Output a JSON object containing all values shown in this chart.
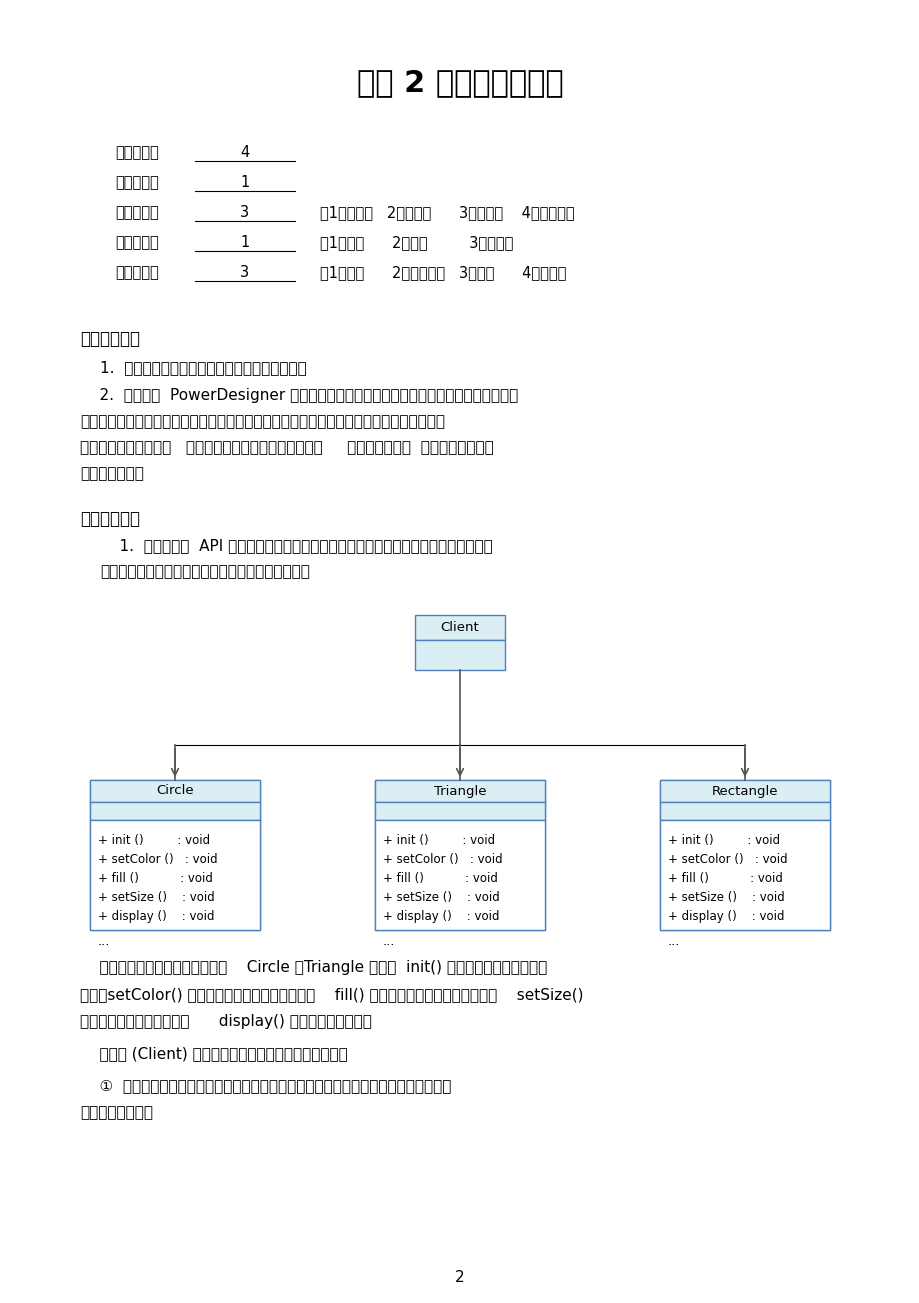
{
  "title": "实验 2 设计模式实验一",
  "bg_color": "#ffffff",
  "page_number": "2",
  "info_rows": [
    {
      "label": "实验学时：",
      "value": "4",
      "extra": ""
    },
    {
      "label": "每组人数：",
      "value": "1",
      "extra": ""
    },
    {
      "label": "实验类型：",
      "value": "3",
      "extra": "（1：基础性   2：综合性      3：设计性    4：研究性）"
    },
    {
      "label": "实验要求：",
      "value": "1",
      "extra": "（1：必修      2：选修         3：其它）"
    },
    {
      "label": "实验类别：",
      "value": "3",
      "extra": "（1：基础      2：专业基础   3：专业      4：其它）"
    }
  ],
  "section1_title": "一、实验目的",
  "s1_item1": "1.  熟练使用面向对象设计原则对系统进行重构；",
  "s1_item2_lines": [
    "    2.  熟练使用  PowerDesigner 和任意一种面向对象编程语言实现几种常见的创建型设计",
    "模式和结构型设计模式，包括简单工厂模式、工厂方法模式、抽象工厂模式、单例模式、适",
    "配器模式和组合模式，   理解每一种设计模式的模式动机，     掌握模式结构，  学习如何使用代码",
    "实现这些模式。"
  ],
  "section2_title": "二、实验内容",
  "s2_para_lines": [
    "    1.  在某图形库  API 中提供了多种矢量图模板，用户可以基于这些矢量图创建不同的显",
    "示图形，图形库设计人员设计的初始类图如下所示："
  ],
  "header_color": "#daeef3",
  "border_color": "#4f81bd",
  "client_label": "Client",
  "class_names": [
    "Circle",
    "Triangle",
    "Rectangle"
  ],
  "class_methods": [
    "+ init ()         : void",
    "+ setColor ()   : void",
    "+ fill ()           : void",
    "+ setSize ()    : void",
    "+ display ()    : void"
  ],
  "ellipsis": "...",
  "para3_lines": [
    "    在该图形库中，每个图形类（如    Circle 、Triangle 等）的  init() 方法用于初始化所创建的",
    "图形，setColor() 方法用于给图形设置边框颜色，    fill() 方法用于给图形设置填充颜色，    setSize()",
    "方法用于设置图形的大小，      display() 方法用于显示图形。"
  ],
  "para4": "    客户类 (Client) 在使用该图形库时发现存在如下问题：",
  "para5_lines": [
    "    ①  由于在创建窗口时每次只需要使用图形库中的一种图形，因此在更换图形时需要修",
    "改客户类源代码；"
  ]
}
